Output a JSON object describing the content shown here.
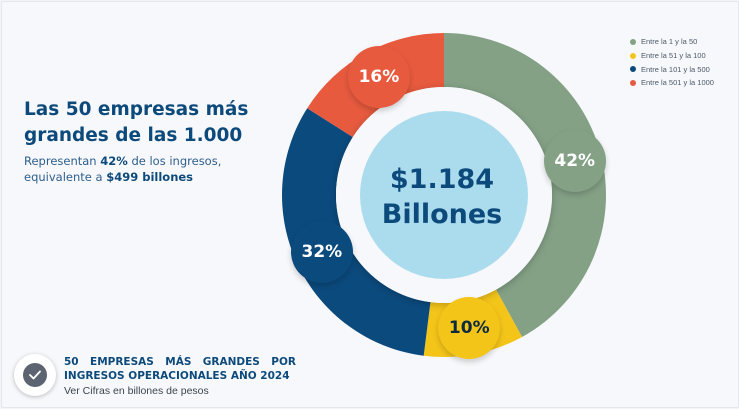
{
  "headline": "Las 50 empresas más grandes de las 1.000",
  "subtitle": {
    "prefix": "Representan ",
    "percent": "42%",
    "middle": " de los ingresos, equivalente a ",
    "amount": "$499 billones"
  },
  "center": {
    "value": "$1.184",
    "unit": "Billones"
  },
  "footer": {
    "title": "50 EMPRESAS MÁS GRANDES POR INGRESOS OPERACIONALES AÑO 2024",
    "note": "Ver Cifras en billones de pesos",
    "icon": "check-icon"
  },
  "colors": {
    "green": "#84a186",
    "yellow": "#f4c519",
    "navy": "#0b4a7d",
    "red": "#e75a3e",
    "center_fill": "#abdcee"
  },
  "chart_data": {
    "type": "pie",
    "variant": "donut",
    "start_angle_deg": 0,
    "legend_placement": "top-right",
    "series": [
      {
        "name": "Entre la 1 y la 50",
        "value": 42,
        "label": "42%",
        "color": "#84a186",
        "label_color": "#ffffff"
      },
      {
        "name": "Entre la 51 y la 100",
        "value": 10,
        "label": "10%",
        "color": "#f4c519",
        "label_color": "#0b2a40"
      },
      {
        "name": "Entre la 101 y la 500",
        "value": 32,
        "label": "32%",
        "color": "#0b4a7d",
        "label_color": "#ffffff"
      },
      {
        "name": "Entre la 501 y la 1000",
        "value": 16,
        "label": "16%",
        "color": "#e75a3e",
        "label_color": "#ffffff"
      }
    ]
  }
}
